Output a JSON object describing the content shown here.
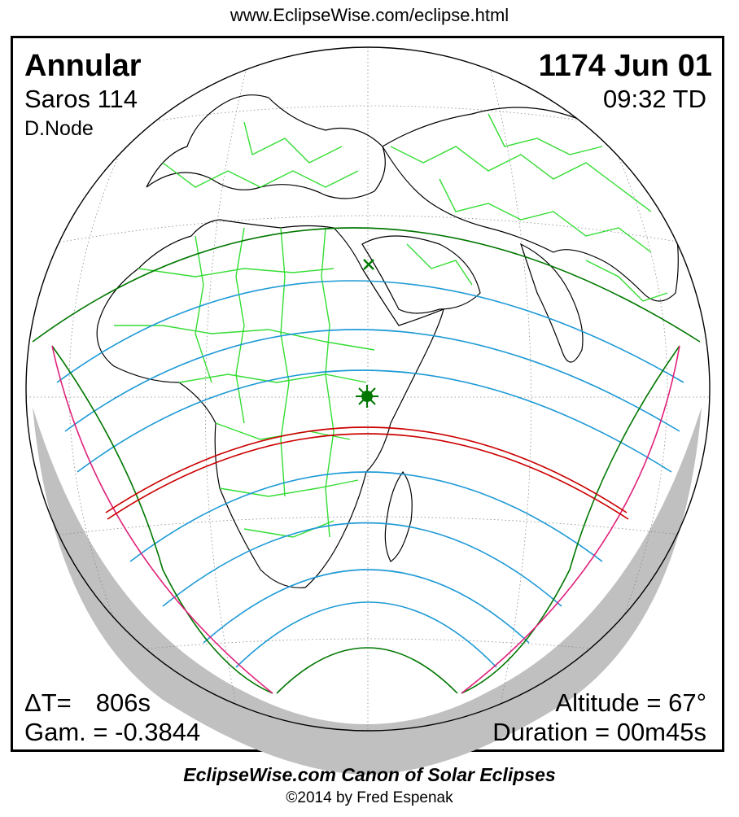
{
  "header": {
    "url": "www.EclipseWise.com/eclipse.html"
  },
  "eclipse": {
    "type": "Annular",
    "date": "1174 Jun 01",
    "saros": "Saros 114",
    "time": "09:32 TD",
    "node": "D.Node",
    "delta_t_label": "ΔT=",
    "delta_t_value": "806s",
    "gamma": "Gam. = -0.3844",
    "altitude": "Altitude = 67°",
    "duration": "Duration = 00m45s"
  },
  "footer": {
    "title": "EclipseWise.com Canon of Solar Eclipses",
    "copyright": "©2014 by Fred Espenak"
  },
  "colors": {
    "path_of_annularity": "#cc0000",
    "penumbral_limits": "#007700",
    "eclipse_magnitude_curves": "#1e9ad6",
    "rise_set_curves": "#e0207a",
    "political_borders": "#33dd33",
    "coastlines": "#000000",
    "night_shading": "#c0c0c0"
  },
  "markers": [
    {
      "name": "greatest-eclipse",
      "symbol": "star",
      "color": "#007700"
    },
    {
      "name": "subsolar-point",
      "symbol": "x",
      "color": "#007700"
    }
  ]
}
